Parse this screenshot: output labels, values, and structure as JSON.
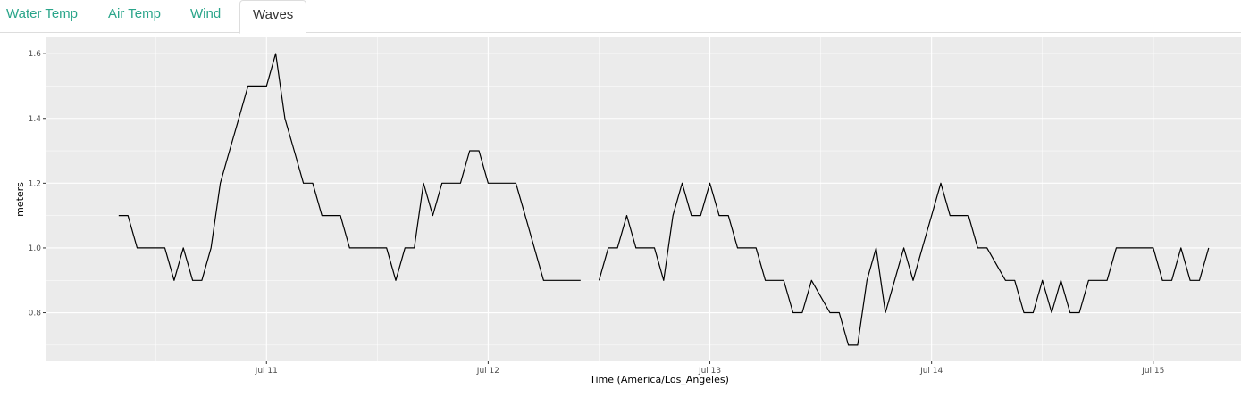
{
  "tabs": [
    {
      "label": "Water Temp",
      "active": false
    },
    {
      "label": "Air Temp",
      "active": false
    },
    {
      "label": "Wind",
      "active": false
    },
    {
      "label": "Waves",
      "active": true
    }
  ],
  "colors": {
    "tab_link": "#2aa58a",
    "tab_active_text": "#333333",
    "panel_background": "#ebebeb",
    "grid": "#ffffff",
    "line": "#000000"
  },
  "chart_data": {
    "type": "line",
    "xlabel": "Time (America/Los_Angeles)",
    "ylabel": "meters",
    "x_ticks": [
      "Jul 11",
      "Jul 12",
      "Jul 13",
      "Jul 14",
      "Jul 15"
    ],
    "y_ticks": [
      "0.8",
      "1.0",
      "1.2",
      "1.4",
      "1.6"
    ],
    "xlim": [
      "2024-07-10T00:05",
      "2024-07-15T09:30"
    ],
    "ylim": [
      0.65,
      1.65
    ],
    "grid": true,
    "series": [
      {
        "name": "",
        "points": [
          [
            "2024-07-10T08:00",
            1.1
          ],
          [
            "2024-07-10T09:00",
            1.1
          ],
          [
            "2024-07-10T10:00",
            1.0
          ],
          [
            "2024-07-10T11:00",
            1.0
          ],
          [
            "2024-07-10T12:00",
            1.0
          ],
          [
            "2024-07-10T13:00",
            1.0
          ],
          [
            "2024-07-10T14:00",
            0.9
          ],
          [
            "2024-07-10T15:00",
            1.0
          ],
          [
            "2024-07-10T16:00",
            0.9
          ],
          [
            "2024-07-10T17:00",
            0.9
          ],
          [
            "2024-07-10T18:00",
            1.0
          ],
          [
            "2024-07-10T19:00",
            1.2
          ],
          [
            "2024-07-10T20:00",
            1.3
          ],
          [
            "2024-07-10T21:00",
            1.4
          ],
          [
            "2024-07-10T22:00",
            1.5
          ],
          [
            "2024-07-10T23:00",
            1.5
          ],
          [
            "2024-07-11T00:00",
            1.5
          ],
          [
            "2024-07-11T01:00",
            1.6
          ],
          [
            "2024-07-11T02:00",
            1.4
          ],
          [
            "2024-07-11T03:00",
            1.3
          ],
          [
            "2024-07-11T04:00",
            1.2
          ],
          [
            "2024-07-11T05:00",
            1.2
          ],
          [
            "2024-07-11T06:00",
            1.1
          ],
          [
            "2024-07-11T07:00",
            1.1
          ],
          [
            "2024-07-11T08:00",
            1.1
          ],
          [
            "2024-07-11T09:00",
            1.0
          ],
          [
            "2024-07-11T10:00",
            1.0
          ],
          [
            "2024-07-11T11:00",
            1.0
          ],
          [
            "2024-07-11T12:00",
            1.0
          ],
          [
            "2024-07-11T13:00",
            1.0
          ],
          [
            "2024-07-11T14:00",
            0.9
          ],
          [
            "2024-07-11T15:00",
            1.0
          ],
          [
            "2024-07-11T16:00",
            1.0
          ],
          [
            "2024-07-11T17:00",
            1.2
          ],
          [
            "2024-07-11T18:00",
            1.1
          ],
          [
            "2024-07-11T19:00",
            1.2
          ],
          [
            "2024-07-11T20:00",
            1.2
          ],
          [
            "2024-07-11T21:00",
            1.2
          ],
          [
            "2024-07-11T22:00",
            1.3
          ],
          [
            "2024-07-11T23:00",
            1.3
          ],
          [
            "2024-07-12T00:00",
            1.2
          ],
          [
            "2024-07-12T01:00",
            1.2
          ],
          [
            "2024-07-12T02:00",
            1.2
          ],
          [
            "2024-07-12T03:00",
            1.2
          ],
          [
            "2024-07-12T04:00",
            1.1
          ],
          [
            "2024-07-12T05:00",
            1.0
          ],
          [
            "2024-07-12T06:00",
            0.9
          ],
          [
            "2024-07-12T07:00",
            0.9
          ],
          [
            "2024-07-12T08:00",
            0.9
          ],
          [
            "2024-07-12T09:00",
            0.9
          ],
          [
            "2024-07-12T10:00",
            0.9
          ],
          null,
          [
            "2024-07-12T12:00",
            0.9
          ],
          [
            "2024-07-12T13:00",
            1.0
          ],
          [
            "2024-07-12T14:00",
            1.0
          ],
          [
            "2024-07-12T15:00",
            1.1
          ],
          [
            "2024-07-12T16:00",
            1.0
          ],
          [
            "2024-07-12T17:00",
            1.0
          ],
          [
            "2024-07-12T18:00",
            1.0
          ],
          [
            "2024-07-12T19:00",
            0.9
          ],
          [
            "2024-07-12T20:00",
            1.1
          ],
          [
            "2024-07-12T21:00",
            1.2
          ],
          [
            "2024-07-12T22:00",
            1.1
          ],
          [
            "2024-07-12T23:00",
            1.1
          ],
          [
            "2024-07-13T00:00",
            1.2
          ],
          [
            "2024-07-13T01:00",
            1.1
          ],
          [
            "2024-07-13T02:00",
            1.1
          ],
          [
            "2024-07-13T03:00",
            1.0
          ],
          [
            "2024-07-13T04:00",
            1.0
          ],
          [
            "2024-07-13T05:00",
            1.0
          ],
          [
            "2024-07-13T06:00",
            0.9
          ],
          [
            "2024-07-13T07:00",
            0.9
          ],
          [
            "2024-07-13T08:00",
            0.9
          ],
          [
            "2024-07-13T09:00",
            0.8
          ],
          [
            "2024-07-13T10:00",
            0.8
          ],
          [
            "2024-07-13T11:00",
            0.9
          ],
          [
            "2024-07-13T12:00",
            0.85
          ],
          [
            "2024-07-13T13:00",
            0.8
          ],
          [
            "2024-07-13T14:00",
            0.8
          ],
          [
            "2024-07-13T15:00",
            0.7
          ],
          [
            "2024-07-13T16:00",
            0.7
          ],
          [
            "2024-07-13T17:00",
            0.9
          ],
          [
            "2024-07-13T18:00",
            1.0
          ],
          [
            "2024-07-13T19:00",
            0.8
          ],
          [
            "2024-07-13T20:00",
            0.9
          ],
          [
            "2024-07-13T21:00",
            1.0
          ],
          [
            "2024-07-13T22:00",
            0.9
          ],
          [
            "2024-07-13T23:00",
            1.0
          ],
          [
            "2024-07-14T00:00",
            1.1
          ],
          [
            "2024-07-14T01:00",
            1.2
          ],
          [
            "2024-07-14T02:00",
            1.1
          ],
          [
            "2024-07-14T03:00",
            1.1
          ],
          [
            "2024-07-14T04:00",
            1.1
          ],
          [
            "2024-07-14T05:00",
            1.0
          ],
          [
            "2024-07-14T06:00",
            1.0
          ],
          [
            "2024-07-14T07:00",
            0.95
          ],
          [
            "2024-07-14T08:00",
            0.9
          ],
          [
            "2024-07-14T09:00",
            0.9
          ],
          [
            "2024-07-14T10:00",
            0.8
          ],
          [
            "2024-07-14T11:00",
            0.8
          ],
          [
            "2024-07-14T12:00",
            0.9
          ],
          [
            "2024-07-14T13:00",
            0.8
          ],
          [
            "2024-07-14T14:00",
            0.9
          ],
          [
            "2024-07-14T15:00",
            0.8
          ],
          [
            "2024-07-14T16:00",
            0.8
          ],
          [
            "2024-07-14T17:00",
            0.9
          ],
          [
            "2024-07-14T18:00",
            0.9
          ],
          [
            "2024-07-14T19:00",
            0.9
          ],
          [
            "2024-07-14T20:00",
            1.0
          ],
          [
            "2024-07-14T21:00",
            1.0
          ],
          [
            "2024-07-14T22:00",
            1.0
          ],
          [
            "2024-07-14T23:00",
            1.0
          ],
          [
            "2024-07-15T00:00",
            1.0
          ],
          [
            "2024-07-15T01:00",
            0.9
          ],
          [
            "2024-07-15T02:00",
            0.9
          ],
          [
            "2024-07-15T03:00",
            1.0
          ],
          [
            "2024-07-15T04:00",
            0.9
          ],
          [
            "2024-07-15T05:00",
            0.9
          ],
          [
            "2024-07-15T06:00",
            1.0
          ]
        ]
      }
    ]
  }
}
